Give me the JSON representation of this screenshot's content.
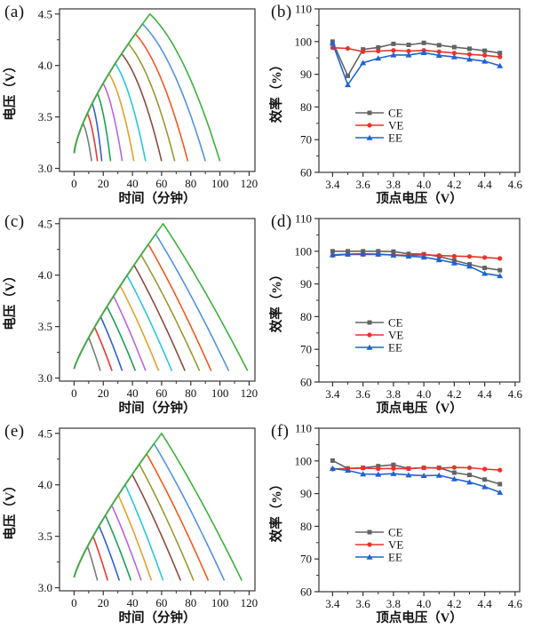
{
  "figure": {
    "background": "#ffffff",
    "frame_color": "#444444",
    "tick_color": "#333333"
  },
  "chart_data": {
    "note": "see panels[] — full data for all six subplots"
  },
  "panels": [
    {
      "id": "a",
      "label": "(a)",
      "type": "voltage_time",
      "xlabel": "时间（分钟）",
      "ylabel": "电压（V）",
      "xlim": [
        -10,
        124
      ],
      "ylim": [
        2.97,
        4.55
      ],
      "xticks": [
        0,
        20,
        40,
        60,
        80,
        100,
        120
      ],
      "yticks": [
        3.0,
        3.5,
        4.0,
        4.5
      ],
      "charge": {
        "v_start": 3.15,
        "v_max": 4.5,
        "t_max": 52,
        "exp": 0.72
      },
      "discharge": {
        "end_v": 3.07,
        "lin": 0.45,
        "pow": 2.0
      },
      "curves": [
        {
          "vertex": 3.4,
          "peak_t": 6.1,
          "end_t": 12,
          "color": "#7a7a7a"
        },
        {
          "vertex": 3.5,
          "peak_t": 9.1,
          "end_t": 16,
          "color": "#e8392d"
        },
        {
          "vertex": 3.6,
          "peak_t": 12.4,
          "end_t": 19,
          "color": "#2e5fd4"
        },
        {
          "vertex": 3.7,
          "peak_t": 16.0,
          "end_t": 25,
          "color": "#1ba158"
        },
        {
          "vertex": 3.8,
          "peak_t": 19.9,
          "end_t": 33,
          "color": "#b667e0"
        },
        {
          "vertex": 3.9,
          "peak_t": 23.9,
          "end_t": 41,
          "color": "#e0a22e"
        },
        {
          "vertex": 4.0,
          "peak_t": 28.2,
          "end_t": 49,
          "color": "#29c6de"
        },
        {
          "vertex": 4.1,
          "peak_t": 32.6,
          "end_t": 60,
          "color": "#8f4a3f"
        },
        {
          "vertex": 4.2,
          "peak_t": 37.2,
          "end_t": 69,
          "color": "#999a31"
        },
        {
          "vertex": 4.3,
          "peak_t": 42.0,
          "end_t": 78,
          "color": "#f2591f"
        },
        {
          "vertex": 4.4,
          "peak_t": 46.9,
          "end_t": 90,
          "color": "#5293dd"
        },
        {
          "vertex": 4.5,
          "peak_t": 52.0,
          "end_t": 100,
          "color": "#3cb13c"
        }
      ]
    },
    {
      "id": "b",
      "label": "(b)",
      "type": "efficiency",
      "xlabel": "顶点电压（V）",
      "ylabel": "效率（%）",
      "xlim": [
        3.31,
        4.63
      ],
      "ylim": [
        60,
        110
      ],
      "xticks": [
        3.4,
        3.6,
        3.8,
        4.0,
        4.2,
        4.4,
        4.6
      ],
      "yticks": [
        60,
        70,
        80,
        90,
        100,
        110
      ],
      "x": [
        3.4,
        3.5,
        3.6,
        3.7,
        3.8,
        3.9,
        4.0,
        4.1,
        4.2,
        4.3,
        4.4,
        4.5
      ],
      "series": [
        {
          "name": "CE",
          "marker": "square",
          "color": "#636363",
          "values": [
            100,
            89.5,
            97.6,
            98.2,
            99.3,
            99.0,
            99.6,
            98.9,
            98.3,
            97.8,
            97.2,
            96.5
          ]
        },
        {
          "name": "VE",
          "marker": "circle",
          "color": "#e8332a",
          "values": [
            98.1,
            97.9,
            96.9,
            97.1,
            97.3,
            97.1,
            97.3,
            96.9,
            96.5,
            96.1,
            95.8,
            95.3
          ]
        },
        {
          "name": "EE",
          "marker": "triangle",
          "color": "#1f63d0",
          "values": [
            99.5,
            86.8,
            93.5,
            94.9,
            95.9,
            95.9,
            96.6,
            95.8,
            95.3,
            94.6,
            94.0,
            92.6
          ]
        }
      ]
    },
    {
      "id": "c",
      "label": "(c)",
      "type": "voltage_time",
      "xlabel": "时间（分钟）",
      "ylabel": "电压（V）",
      "xlim": [
        -10,
        124
      ],
      "ylim": [
        2.97,
        4.55
      ],
      "xticks": [
        0,
        20,
        40,
        60,
        80,
        100,
        120
      ],
      "yticks": [
        3.0,
        3.5,
        4.0,
        4.5
      ],
      "charge": {
        "v_start": 3.09,
        "v_max": 4.5,
        "t_max": 61,
        "exp": 0.85
      },
      "discharge": {
        "end_v": 3.07,
        "lin": 0.85,
        "pow": 1.8
      },
      "curves": [
        {
          "vertex": 3.4,
          "peak_t": 10.0,
          "end_t": 18,
          "color": "#7a7a7a"
        },
        {
          "vertex": 3.5,
          "peak_t": 14.0,
          "end_t": 26,
          "color": "#e8392d"
        },
        {
          "vertex": 3.6,
          "peak_t": 18.2,
          "end_t": 33,
          "color": "#2e5fd4"
        },
        {
          "vertex": 3.7,
          "peak_t": 22.5,
          "end_t": 42,
          "color": "#1ba158"
        },
        {
          "vertex": 3.8,
          "peak_t": 27.0,
          "end_t": 49,
          "color": "#b667e0"
        },
        {
          "vertex": 3.9,
          "peak_t": 31.6,
          "end_t": 58,
          "color": "#e0a22e"
        },
        {
          "vertex": 4.0,
          "peak_t": 36.3,
          "end_t": 67,
          "color": "#29c6de"
        },
        {
          "vertex": 4.1,
          "peak_t": 41.1,
          "end_t": 76,
          "color": "#8f4a3f"
        },
        {
          "vertex": 4.2,
          "peak_t": 45.9,
          "end_t": 86,
          "color": "#999a31"
        },
        {
          "vertex": 4.3,
          "peak_t": 50.9,
          "end_t": 94,
          "color": "#f2591f"
        },
        {
          "vertex": 4.4,
          "peak_t": 55.9,
          "end_t": 106,
          "color": "#5293dd"
        },
        {
          "vertex": 4.5,
          "peak_t": 61.0,
          "end_t": 119,
          "color": "#3cb13c"
        }
      ]
    },
    {
      "id": "d",
      "label": "(d)",
      "type": "efficiency",
      "xlabel": "顶点电压（V）",
      "ylabel": "效率（%）",
      "xlim": [
        3.31,
        4.63
      ],
      "ylim": [
        60,
        110
      ],
      "xticks": [
        3.4,
        3.6,
        3.8,
        4.0,
        4.2,
        4.4,
        4.6
      ],
      "yticks": [
        60,
        70,
        80,
        90,
        100,
        110
      ],
      "x": [
        3.4,
        3.5,
        3.6,
        3.7,
        3.8,
        3.9,
        4.0,
        4.1,
        4.2,
        4.3,
        4.4,
        4.5
      ],
      "series": [
        {
          "name": "CE",
          "marker": "square",
          "color": "#636363",
          "values": [
            100,
            100,
            100,
            100,
            99.9,
            99.2,
            99.1,
            98.4,
            97.2,
            96.0,
            94.9,
            94.2
          ]
        },
        {
          "name": "VE",
          "marker": "circle",
          "color": "#e8332a",
          "values": [
            98.7,
            99.0,
            99.0,
            99.0,
            98.9,
            98.7,
            98.9,
            98.7,
            98.5,
            98.4,
            98.1,
            97.8
          ]
        },
        {
          "name": "EE",
          "marker": "triangle",
          "color": "#1f63d0",
          "values": [
            98.9,
            99.1,
            99.2,
            99.1,
            98.8,
            98.5,
            98.2,
            97.4,
            96.4,
            95.4,
            93.2,
            92.5
          ]
        }
      ]
    },
    {
      "id": "e",
      "label": "(e)",
      "type": "voltage_time",
      "xlabel": "时间（分钟）",
      "ylabel": "电压（V）",
      "xlim": [
        -10,
        124
      ],
      "ylim": [
        2.97,
        4.55
      ],
      "xticks": [
        0,
        20,
        40,
        60,
        80,
        100,
        120
      ],
      "yticks": [
        3.0,
        3.5,
        4.0,
        4.5
      ],
      "charge": {
        "v_start": 3.1,
        "v_max": 4.5,
        "t_max": 60,
        "exp": 0.82
      },
      "discharge": {
        "end_v": 3.07,
        "lin": 0.85,
        "pow": 1.8
      },
      "curves": [
        {
          "vertex": 3.4,
          "peak_t": 9.2,
          "end_t": 16,
          "color": "#7a7a7a"
        },
        {
          "vertex": 3.5,
          "peak_t": 13.0,
          "end_t": 23,
          "color": "#e8392d"
        },
        {
          "vertex": 3.6,
          "peak_t": 17.1,
          "end_t": 31,
          "color": "#2e5fd4"
        },
        {
          "vertex": 3.7,
          "peak_t": 21.4,
          "end_t": 39,
          "color": "#1ba158"
        },
        {
          "vertex": 3.8,
          "peak_t": 25.8,
          "end_t": 46,
          "color": "#b667e0"
        },
        {
          "vertex": 3.9,
          "peak_t": 30.3,
          "end_t": 53,
          "color": "#e0a22e"
        },
        {
          "vertex": 4.0,
          "peak_t": 35.0,
          "end_t": 61,
          "color": "#29c6de"
        },
        {
          "vertex": 4.1,
          "peak_t": 39.8,
          "end_t": 73,
          "color": "#8f4a3f"
        },
        {
          "vertex": 4.2,
          "peak_t": 44.7,
          "end_t": 82,
          "color": "#999a31"
        },
        {
          "vertex": 4.3,
          "peak_t": 49.7,
          "end_t": 92,
          "color": "#f2591f"
        },
        {
          "vertex": 4.4,
          "peak_t": 54.8,
          "end_t": 103,
          "color": "#5293dd"
        },
        {
          "vertex": 4.5,
          "peak_t": 60.0,
          "end_t": 115,
          "color": "#3cb13c"
        }
      ]
    },
    {
      "id": "f",
      "label": "(f)",
      "type": "efficiency",
      "xlabel": "顶点电压（V）",
      "ylabel": "效率（%）",
      "xlim": [
        3.31,
        4.63
      ],
      "ylim": [
        60,
        110
      ],
      "xticks": [
        3.4,
        3.6,
        3.8,
        4.0,
        4.2,
        4.4,
        4.6
      ],
      "yticks": [
        60,
        70,
        80,
        90,
        100,
        110
      ],
      "x": [
        3.4,
        3.5,
        3.6,
        3.7,
        3.8,
        3.9,
        4.0,
        4.1,
        4.2,
        4.3,
        4.4,
        4.5
      ],
      "series": [
        {
          "name": "CE",
          "marker": "square",
          "color": "#636363",
          "values": [
            100.1,
            97.7,
            97.9,
            98.4,
            98.8,
            97.7,
            97.9,
            97.9,
            96.4,
            95.7,
            94.3,
            92.9
          ]
        },
        {
          "name": "VE",
          "marker": "circle",
          "color": "#e8332a",
          "values": [
            97.5,
            97.7,
            97.8,
            97.6,
            97.7,
            97.6,
            97.9,
            97.8,
            98.0,
            97.9,
            97.5,
            97.2
          ]
        },
        {
          "name": "EE",
          "marker": "triangle",
          "color": "#1f63d0",
          "values": [
            97.7,
            97.1,
            96.0,
            95.9,
            96.1,
            95.7,
            95.5,
            95.6,
            94.5,
            93.5,
            92.1,
            90.4
          ]
        }
      ]
    }
  ]
}
